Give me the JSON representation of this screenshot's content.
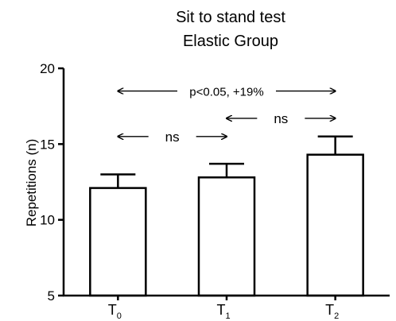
{
  "chart_data": {
    "type": "bar",
    "title": "Sit to stand test",
    "subtitle": "Elastic Group",
    "ylabel": "Repetitions (n)",
    "xlabel": "",
    "ylim": [
      5,
      20
    ],
    "yticks": [
      5,
      10,
      15,
      20
    ],
    "categories": [
      {
        "base": "T",
        "sub": "0"
      },
      {
        "base": "T",
        "sub": "1"
      },
      {
        "base": "T",
        "sub": "2"
      }
    ],
    "values": [
      12.1,
      12.8,
      14.3
    ],
    "errors": [
      0.9,
      0.9,
      1.2
    ],
    "bar_color": "#ffffff",
    "stroke_color": "#000000",
    "annotations": [
      {
        "from": 0,
        "to": 2,
        "label": "p<0.05, +19%",
        "y": 18.5
      },
      {
        "from": 0,
        "to": 1,
        "label": "ns",
        "y": 15.5
      },
      {
        "from": 1,
        "to": 2,
        "label": "ns",
        "y": 16.7
      }
    ]
  }
}
